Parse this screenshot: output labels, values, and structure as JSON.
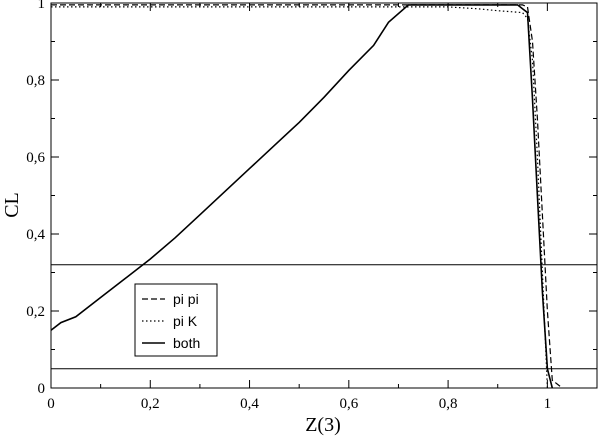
{
  "chart_data": {
    "type": "line",
    "xlabel": "Z(3)",
    "ylabel": "CL",
    "xlim": [
      0,
      1.1
    ],
    "ylim": [
      0,
      1
    ],
    "x_ticks": [
      {
        "value": 0,
        "label": "0"
      },
      {
        "value": 0.2,
        "label": "0,2"
      },
      {
        "value": 0.4,
        "label": "0,4"
      },
      {
        "value": 0.6,
        "label": "0,6"
      },
      {
        "value": 0.8,
        "label": "0,8"
      },
      {
        "value": 1.0,
        "label": "1"
      }
    ],
    "y_ticks": [
      {
        "value": 0,
        "label": "0"
      },
      {
        "value": 0.2,
        "label": "0,2"
      },
      {
        "value": 0.4,
        "label": "0,4"
      },
      {
        "value": 0.6,
        "label": "0,6"
      },
      {
        "value": 0.8,
        "label": "0,8"
      },
      {
        "value": 1.0,
        "label": "1"
      }
    ],
    "grid": false,
    "legend_position": "bottom-left",
    "reference_lines": [
      0.32,
      0.05
    ],
    "series": [
      {
        "name": "pi pi",
        "style": "dashed",
        "x": [
          0,
          0.2,
          0.4,
          0.6,
          0.8,
          0.95,
          0.96,
          0.97,
          0.98,
          0.99,
          1.0,
          1.01,
          1.02,
          1.03
        ],
        "y": [
          0.995,
          0.995,
          0.995,
          0.995,
          0.995,
          0.995,
          0.99,
          0.9,
          0.7,
          0.45,
          0.2,
          0.02,
          0.01,
          0.0
        ]
      },
      {
        "name": "pi K",
        "style": "dotted",
        "x": [
          0,
          0.2,
          0.4,
          0.6,
          0.8,
          0.86,
          0.9,
          0.95,
          0.96,
          0.97,
          0.98,
          0.99,
          1.0
        ],
        "y": [
          0.99,
          0.99,
          0.99,
          0.99,
          0.99,
          0.985,
          0.98,
          0.975,
          0.96,
          0.85,
          0.6,
          0.3,
          0.0
        ]
      },
      {
        "name": "both",
        "style": "solid",
        "x": [
          0,
          0.02,
          0.05,
          0.1,
          0.15,
          0.2,
          0.25,
          0.3,
          0.35,
          0.4,
          0.45,
          0.5,
          0.55,
          0.6,
          0.65,
          0.68,
          0.72,
          0.8,
          0.9,
          0.94,
          0.95,
          0.96,
          0.97,
          0.98,
          0.99,
          1.0,
          1.01
        ],
        "y": [
          0.15,
          0.17,
          0.185,
          0.235,
          0.285,
          0.335,
          0.39,
          0.45,
          0.51,
          0.57,
          0.63,
          0.69,
          0.755,
          0.825,
          0.89,
          0.95,
          0.995,
          0.995,
          0.995,
          0.995,
          0.985,
          0.975,
          0.75,
          0.5,
          0.25,
          0.05,
          0.0
        ]
      }
    ]
  }
}
